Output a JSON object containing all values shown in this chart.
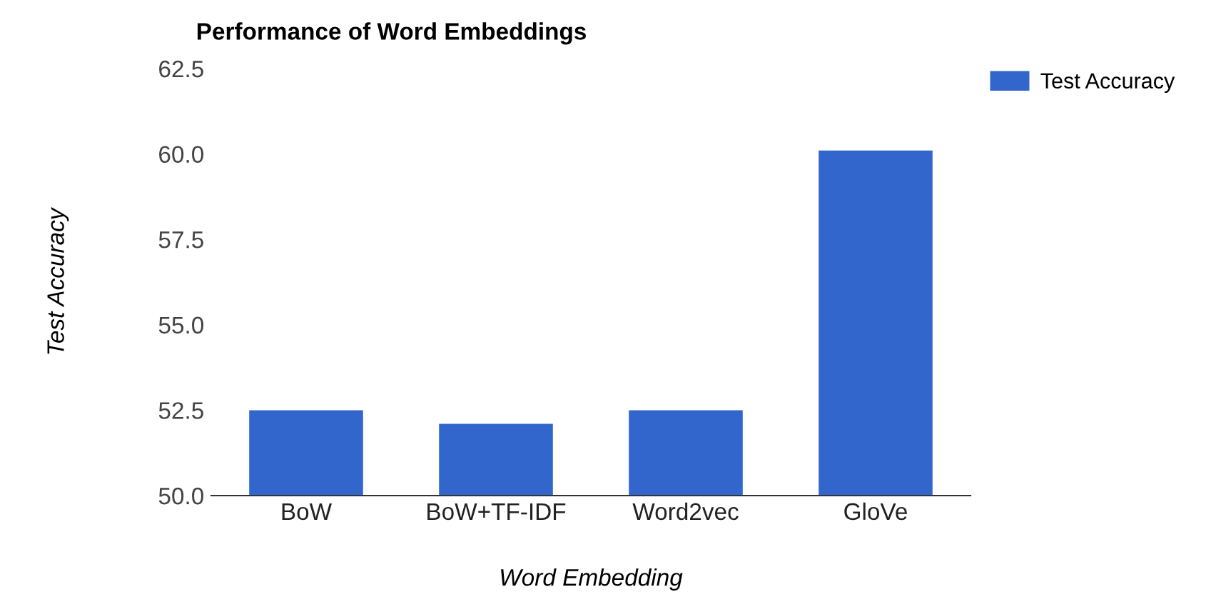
{
  "chart_data": {
    "type": "bar",
    "title": "Performance of Word Embeddings",
    "xlabel": "Word Embedding",
    "ylabel": "Test Accuracy",
    "categories": [
      "BoW",
      "BoW+TF-IDF",
      "Word2vec",
      "GloVe"
    ],
    "series": [
      {
        "name": "Test Accuracy",
        "color": "#3366cc",
        "values": [
          52.5,
          52.1,
          52.5,
          60.1
        ]
      }
    ],
    "ylim": [
      50,
      62.5
    ],
    "yticks": [
      {
        "value": 50,
        "label": "50.0"
      },
      {
        "value": 52.5,
        "label": "52.5"
      },
      {
        "value": 55,
        "label": "55.0"
      },
      {
        "value": 57.5,
        "label": "57.5"
      },
      {
        "value": 60,
        "label": "60.0"
      },
      {
        "value": 62.5,
        "label": "62.5"
      }
    ],
    "grid": false,
    "legend": "top right"
  }
}
